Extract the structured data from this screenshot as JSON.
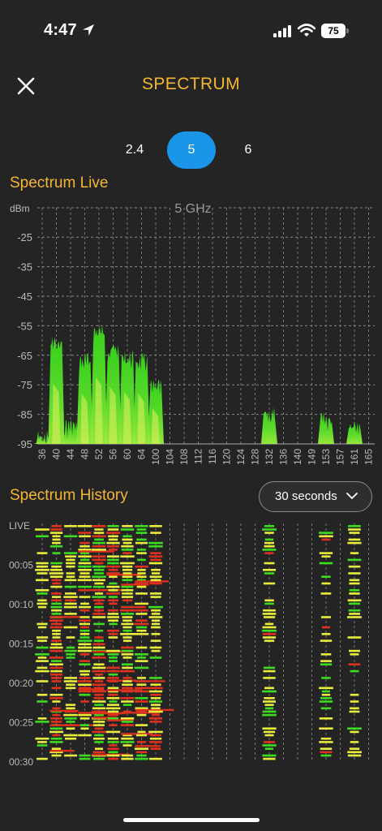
{
  "status": {
    "time": "4:47",
    "battery": "75"
  },
  "header": {
    "title": "SPECTRUM"
  },
  "bands": {
    "tabs": [
      "2.4",
      "5",
      "6"
    ],
    "selected": "5"
  },
  "live": {
    "title": "Spectrum Live",
    "band_label": "5 GHz",
    "unit": "dBm",
    "y_ticks": [
      -25,
      -35,
      -45,
      -55,
      -65,
      -75,
      -85,
      -95
    ],
    "channels": [
      "36",
      "40",
      "44",
      "48",
      "52",
      "56",
      "60",
      "64",
      "100",
      "104",
      "108",
      "112",
      "116",
      "120",
      "124",
      "128",
      "132",
      "136",
      "140",
      "149",
      "153",
      "157",
      "161",
      "165"
    ]
  },
  "history": {
    "title": "Spectrum History",
    "duration_selected": "30 seconds",
    "row_labels": [
      "LIVE",
      "00:05",
      "00:10",
      "00:15",
      "00:20",
      "00:25",
      "00:30"
    ]
  },
  "chart_data": {
    "type": "area",
    "title": "5 GHz",
    "xlabel": "",
    "ylabel": "dBm",
    "ylim": [
      -95,
      -20
    ],
    "grid": true,
    "categories": [
      "36",
      "40",
      "44",
      "48",
      "52",
      "56",
      "60",
      "64",
      "100",
      "104",
      "108",
      "112",
      "116",
      "120",
      "124",
      "128",
      "132",
      "136",
      "140",
      "149",
      "153",
      "157",
      "161",
      "165"
    ],
    "series": [
      {
        "values": [
          -90,
          -58,
          -86,
          -64,
          -54,
          -60,
          -63,
          -64,
          -73,
          -95,
          -95,
          -95,
          -95,
          -95,
          -95,
          -95,
          -82,
          -95,
          -95,
          -95,
          -84,
          -95,
          -85,
          -95
        ]
      }
    ]
  },
  "colors": {
    "accent": "#F5B731",
    "tab_active": "#1A95E8",
    "background": "#242424",
    "signal_green": "#3DDC1E",
    "signal_yellow": "#E8EC3A",
    "signal_red": "#E0301E"
  }
}
